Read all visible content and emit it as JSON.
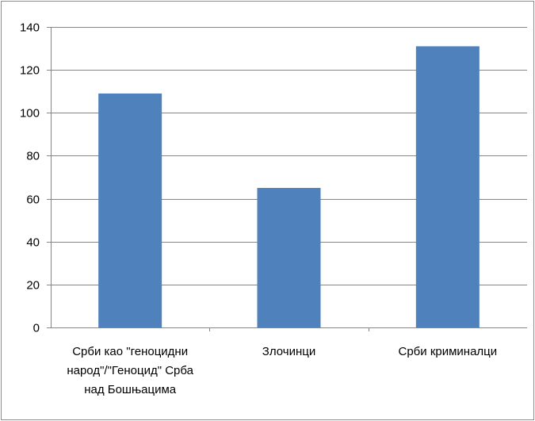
{
  "chart_data": {
    "type": "bar",
    "categories": [
      [
        "Срби као \"геноцидни",
        "народ\"/\"Геноцид\" Срба",
        "над Бошњацима"
      ],
      [
        "Злочинци"
      ],
      [
        "Срби криминалци"
      ]
    ],
    "values": [
      109,
      65,
      131
    ],
    "ylim": [
      0,
      140
    ],
    "yticks": [
      "0",
      "20",
      "40",
      "60",
      "80",
      "100",
      "120",
      "140"
    ],
    "grid": true,
    "legend": "none",
    "colors": {
      "bar": "#4f81bd",
      "grid": "#868686",
      "axis": "#868686"
    }
  }
}
